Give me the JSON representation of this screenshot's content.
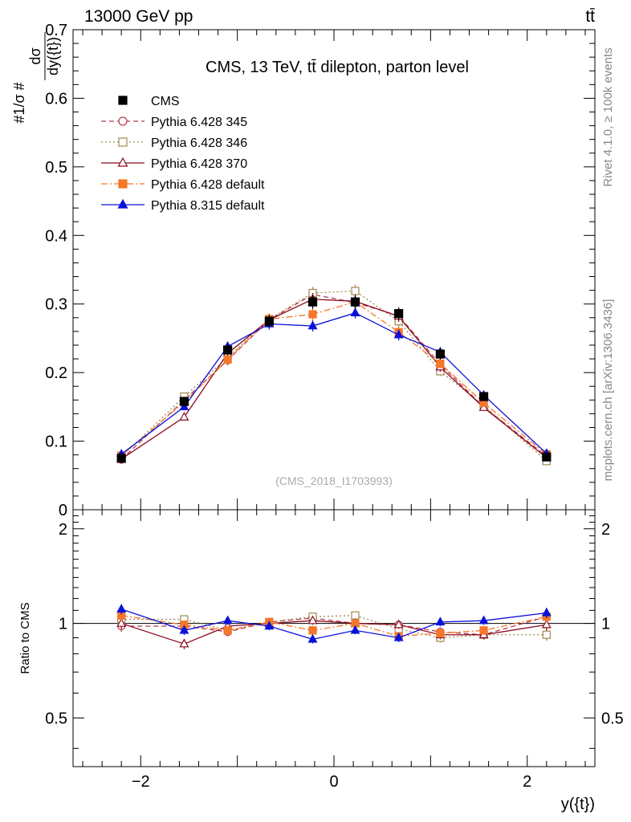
{
  "header": {
    "left": "13000 GeV pp",
    "right": "tt̄"
  },
  "side_labels": {
    "rivet": "Rivet 4.1.0, ≥ 100k events",
    "mcplots": "mcplots.cern.ch [arXiv:1306.3436]"
  },
  "chart_data": [
    {
      "type": "line",
      "panel": "main",
      "title": "CMS, 13 TeV, tt̄ dilepton, parton level",
      "watermark": "(CMS_2018_I1703993)",
      "ylabel": "#1/σ # dσ/dy({t})",
      "ylabel_num": "dσ",
      "ylabel_den": "dy({t})",
      "xlabel": "",
      "xlim": [
        -2.7,
        2.7
      ],
      "ylim": [
        0,
        0.7
      ],
      "yticks": [
        0,
        0.1,
        0.2,
        0.3,
        0.4,
        0.5,
        0.6,
        0.7
      ],
      "yticklabels": [
        "0",
        "0.1",
        "0.2",
        "0.3",
        "0.4",
        "0.5",
        "0.6",
        "0.7"
      ],
      "x": [
        -2.2,
        -1.55,
        -1.1,
        -0.67,
        -0.22,
        0.22,
        0.67,
        1.1,
        1.55,
        2.2
      ],
      "legend_position": "top-left",
      "series": [
        {
          "name": "CMS",
          "color": "#000000",
          "style": "data",
          "marker": "square-filled",
          "values": [
            0.075,
            0.158,
            0.233,
            0.275,
            0.303,
            0.303,
            0.286,
            0.227,
            0.165,
            0.077
          ],
          "errors": [
            0.004,
            0.006,
            0.008,
            0.009,
            0.01,
            0.01,
            0.009,
            0.008,
            0.006,
            0.004
          ]
        },
        {
          "name": "Pythia 6.428 345",
          "color": "#b23b4a",
          "style": "dashed",
          "marker": "circle-open",
          "values": [
            0.073,
            0.16,
            0.218,
            0.277,
            0.314,
            0.302,
            0.283,
            0.212,
            0.15,
            0.078
          ],
          "errors": [
            0.003,
            0.005,
            0.007,
            0.008,
            0.009,
            0.009,
            0.008,
            0.007,
            0.005,
            0.003
          ]
        },
        {
          "name": "Pythia 6.428 346",
          "color": "#a08850",
          "style": "dotted",
          "marker": "square-open",
          "values": [
            0.077,
            0.165,
            0.222,
            0.278,
            0.316,
            0.319,
            0.275,
            0.202,
            0.152,
            0.071
          ],
          "errors": [
            0.003,
            0.005,
            0.007,
            0.008,
            0.009,
            0.009,
            0.008,
            0.007,
            0.005,
            0.003
          ]
        },
        {
          "name": "Pythia 6.428 370",
          "color": "#8b0a1e",
          "style": "solid",
          "marker": "triangle-open",
          "values": [
            0.074,
            0.135,
            0.228,
            0.277,
            0.307,
            0.304,
            0.282,
            0.208,
            0.149,
            0.076
          ],
          "errors": [
            0.003,
            0.005,
            0.007,
            0.008,
            0.009,
            0.009,
            0.008,
            0.007,
            0.005,
            0.003
          ]
        },
        {
          "name": "Pythia 6.428 default",
          "color": "#f4772b",
          "style": "dashdot",
          "marker": "square-filled",
          "values": [
            0.079,
            0.157,
            0.219,
            0.278,
            0.285,
            0.303,
            0.259,
            0.213,
            0.156,
            0.081
          ],
          "errors": [
            0.003,
            0.005,
            0.007,
            0.008,
            0.009,
            0.009,
            0.008,
            0.007,
            0.005,
            0.003
          ]
        },
        {
          "name": "Pythia 8.315 default",
          "color": "#0a12d8",
          "style": "solid",
          "marker": "triangle-filled",
          "values": [
            0.081,
            0.15,
            0.238,
            0.271,
            0.268,
            0.287,
            0.255,
            0.23,
            0.167,
            0.082
          ],
          "errors": [
            0.003,
            0.005,
            0.007,
            0.008,
            0.008,
            0.008,
            0.008,
            0.007,
            0.005,
            0.003
          ]
        }
      ]
    },
    {
      "type": "line",
      "panel": "ratio",
      "ylabel": "Ratio to CMS",
      "xlabel": "y({t})",
      "xlim": [
        -2.7,
        2.7
      ],
      "ylim": [
        0.35,
        2.3
      ],
      "yscale": "log",
      "xticks": [
        -2,
        0,
        2
      ],
      "xticklabels": [
        "−2",
        "0",
        "2"
      ],
      "yticks": [
        0.5,
        1,
        2
      ],
      "yticklabels": [
        "0.5",
        "1",
        "2"
      ],
      "x": [
        -2.2,
        -1.55,
        -1.1,
        -0.67,
        -0.22,
        0.22,
        0.67,
        1.1,
        1.55,
        2.2
      ],
      "series": [
        {
          "name": "Pythia 6.428 345",
          "values": [
            0.98,
            0.98,
            0.94,
            1.01,
            1.04,
            1.0,
            0.99,
            0.94,
            0.92,
            1.05
          ]
        },
        {
          "name": "Pythia 6.428 346",
          "values": [
            1.03,
            1.03,
            0.95,
            1.01,
            1.05,
            1.06,
            0.96,
            0.9,
            0.92,
            0.92
          ]
        },
        {
          "name": "Pythia 6.428 370",
          "values": [
            1.0,
            0.86,
            0.98,
            1.0,
            1.02,
            1.0,
            0.99,
            0.92,
            0.92,
            0.99
          ]
        },
        {
          "name": "Pythia 6.428 default",
          "values": [
            1.06,
            0.99,
            0.95,
            1.01,
            0.95,
            1.0,
            0.91,
            0.93,
            0.95,
            1.05
          ]
        },
        {
          "name": "Pythia 8.315 default",
          "values": [
            1.11,
            0.95,
            1.02,
            0.98,
            0.89,
            0.95,
            0.9,
            1.01,
            1.02,
            1.08
          ]
        }
      ]
    }
  ]
}
